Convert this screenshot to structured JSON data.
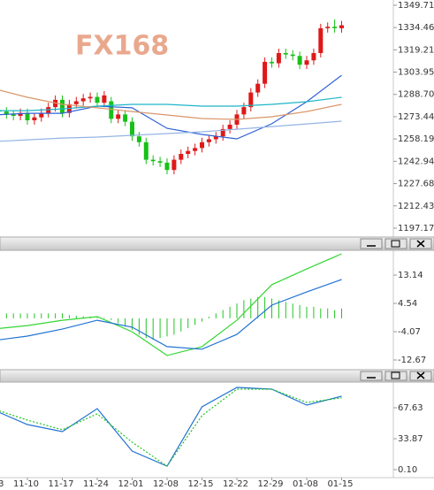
{
  "chart_data": [
    {
      "type": "candlestick",
      "watermark": "FX168",
      "categories": [
        "3",
        null,
        null,
        null,
        null,
        "11-10",
        null,
        null,
        null,
        null,
        "11-17",
        null,
        null,
        null,
        null,
        "11-24",
        null,
        null,
        null,
        null,
        "12-01",
        null,
        null,
        null,
        null,
        "12-08",
        null,
        null,
        null,
        null,
        "12-15",
        null,
        null,
        null,
        null,
        "12-22",
        null,
        null,
        null,
        null,
        "12-29",
        null,
        null,
        null,
        null,
        "01-08",
        null,
        null,
        null,
        null,
        "01-15"
      ],
      "open": [
        1280,
        1278,
        1277,
        1275,
        1274,
        1276,
        1271,
        1273,
        1276,
        1280,
        1285,
        1276,
        1282,
        1284,
        1286,
        1287,
        1283,
        1284,
        1272,
        1275,
        1270,
        1260,
        1256,
        1244,
        1243,
        1242,
        1237,
        1244,
        1248,
        1250,
        1252,
        1256,
        1258,
        1260,
        1265,
        1268,
        1275,
        1280,
        1290,
        1296,
        1311,
        1310,
        1317,
        1316,
        1315,
        1309,
        1312,
        1317,
        1334,
        1335,
        1334
      ],
      "high": [
        1283,
        1281,
        1280,
        1278,
        1279,
        1279,
        1276,
        1279,
        1283,
        1288,
        1288,
        1285,
        1287,
        1289,
        1290,
        1290,
        1291,
        1287,
        1278,
        1278,
        1273,
        1263,
        1259,
        1247,
        1246,
        1245,
        1247,
        1251,
        1253,
        1255,
        1259,
        1261,
        1263,
        1268,
        1271,
        1278,
        1283,
        1293,
        1299,
        1314,
        1314,
        1320,
        1320,
        1319,
        1318,
        1315,
        1320,
        1337,
        1338,
        1340,
        1339
      ],
      "low": [
        1275,
        1274,
        1272,
        1271,
        1271,
        1268,
        1268,
        1270,
        1273,
        1277,
        1273,
        1273,
        1279,
        1281,
        1283,
        1280,
        1280,
        1269,
        1269,
        1267,
        1257,
        1253,
        1241,
        1240,
        1239,
        1234,
        1234,
        1241,
        1245,
        1247,
        1249,
        1253,
        1255,
        1257,
        1262,
        1265,
        1272,
        1277,
        1287,
        1293,
        1307,
        1307,
        1313,
        1312,
        1306,
        1306,
        1309,
        1314,
        1331,
        1331,
        1331
      ],
      "close": [
        1278,
        1277,
        1275,
        1274,
        1276,
        1271,
        1273,
        1276,
        1280,
        1285,
        1276,
        1282,
        1284,
        1286,
        1287,
        1283,
        1288,
        1272,
        1275,
        1270,
        1260,
        1256,
        1244,
        1243,
        1242,
        1237,
        1244,
        1248,
        1250,
        1252,
        1256,
        1258,
        1260,
        1265,
        1268,
        1275,
        1280,
        1290,
        1296,
        1311,
        1310,
        1317,
        1316,
        1315,
        1309,
        1312,
        1317,
        1334,
        1335,
        1334,
        1336
      ],
      "up_color": "#e01818",
      "down_color": "#18c018",
      "series": [
        {
          "color": "#2f62d6",
          "x": [
            0,
            5,
            10,
            15,
            20,
            25,
            30,
            35,
            40,
            45,
            50
          ],
          "values": [
            1274.6,
            1275.8,
            1275.8,
            1280.7,
            1279.5,
            1265.5,
            1261.3,
            1258.3,
            1268.6,
            1283.7,
            1301.8
          ]
        },
        {
          "color": "#1fb5c8",
          "x": [
            0,
            5,
            10,
            15,
            20,
            25,
            30,
            35,
            40,
            45,
            50
          ],
          "values": [
            1277.6,
            1277.6,
            1278.8,
            1280.7,
            1281.9,
            1281.9,
            1280.7,
            1280.7,
            1281.9,
            1283.7,
            1286.7
          ]
        },
        {
          "color": "#d9966a",
          "x": [
            0,
            5,
            10,
            15,
            20,
            25,
            30,
            35,
            40,
            45,
            50
          ],
          "values": [
            1292.8,
            1286.7,
            1281.9,
            1279.5,
            1277.0,
            1274.6,
            1272.2,
            1271.6,
            1273.4,
            1277.0,
            1281.9
          ]
        },
        {
          "color": "#95b4e4",
          "x": [
            0,
            5,
            10,
            15,
            20,
            25,
            30,
            35,
            40,
            45,
            50
          ],
          "values": [
            1256.4,
            1257.6,
            1258.8,
            1259.5,
            1260.7,
            1261.9,
            1263.1,
            1264.9,
            1266.7,
            1268.5,
            1270.4
          ]
        }
      ],
      "ylim": [
        1191.1,
        1353.3
      ],
      "yticks": [
        1349.71,
        1334.46,
        1319.21,
        1303.95,
        {
          "value": 1288.7,
          "label": "1288.70"
        },
        1273.44,
        1258.19,
        1242.94,
        1227.68,
        1212.43,
        1197.17
      ]
    },
    {
      "type": "bar",
      "color": "#22c422",
      "values": [
        1.5,
        1.5,
        1.5,
        1.5,
        1.5,
        1.5,
        1.5,
        1.5,
        1.5,
        1.5,
        1.5,
        1.0,
        0.8,
        0.6,
        0.5,
        0.3,
        0.2,
        -0.5,
        -1.5,
        -2.5,
        -3.5,
        -5,
        -6,
        -6.5,
        -6,
        -5.5,
        -5,
        -4,
        -3,
        -2,
        -1,
        0.5,
        1.5,
        2.5,
        3.5,
        4.5,
        5.5,
        6,
        6.5,
        6.5,
        6,
        5.5,
        5,
        4.5,
        4,
        3.5,
        3.5,
        3,
        3,
        2.5,
        3
      ],
      "series": [
        {
          "color": "#34d634",
          "x": [
            0,
            5,
            10,
            15,
            20,
            25,
            30,
            35,
            40,
            45,
            50
          ],
          "values": [
            -3.3,
            -2.2,
            -0.6,
            0.5,
            -4.1,
            -11.3,
            -8.6,
            -0.6,
            10.2,
            15.0,
            19.6
          ]
        },
        {
          "color": "#2272d2",
          "x": [
            0,
            5,
            10,
            15,
            20,
            25,
            30,
            35,
            40,
            45,
            50
          ],
          "values": [
            -6.8,
            -5.4,
            -3.3,
            -0.6,
            -2.7,
            -8.6,
            -9.4,
            -4.9,
            4.0,
            8.0,
            11.8
          ]
        }
      ],
      "ylim": [
        -15.63,
        20.67
      ],
      "yticks": [
        13.14,
        4.54,
        -4.07,
        -12.67
      ]
    },
    {
      "type": "line",
      "series": [
        {
          "color": "#2272d2",
          "dashed": false,
          "x": [
            0,
            5,
            10,
            15,
            20,
            25,
            30,
            35,
            40,
            45,
            50
          ],
          "values": [
            65.7,
            49.3,
            41.6,
            66.7,
            20.4,
            4.0,
            68.6,
            89.8,
            87.9,
            70.5,
            80.2
          ]
        },
        {
          "color": "#22c422",
          "dashed": true,
          "x": [
            0,
            5,
            10,
            15,
            20,
            25,
            30,
            35,
            40,
            45,
            50
          ],
          "values": [
            66.7,
            54.1,
            43.6,
            61.0,
            30.0,
            4.0,
            59.0,
            87.9,
            87.9,
            73.4,
            78.3
          ]
        }
      ],
      "ylim": [
        -8.58,
        95.6
      ],
      "yticks": [
        67.63,
        33.87,
        {
          "value": 0.1,
          "label": "0.10"
        }
      ]
    }
  ]
}
